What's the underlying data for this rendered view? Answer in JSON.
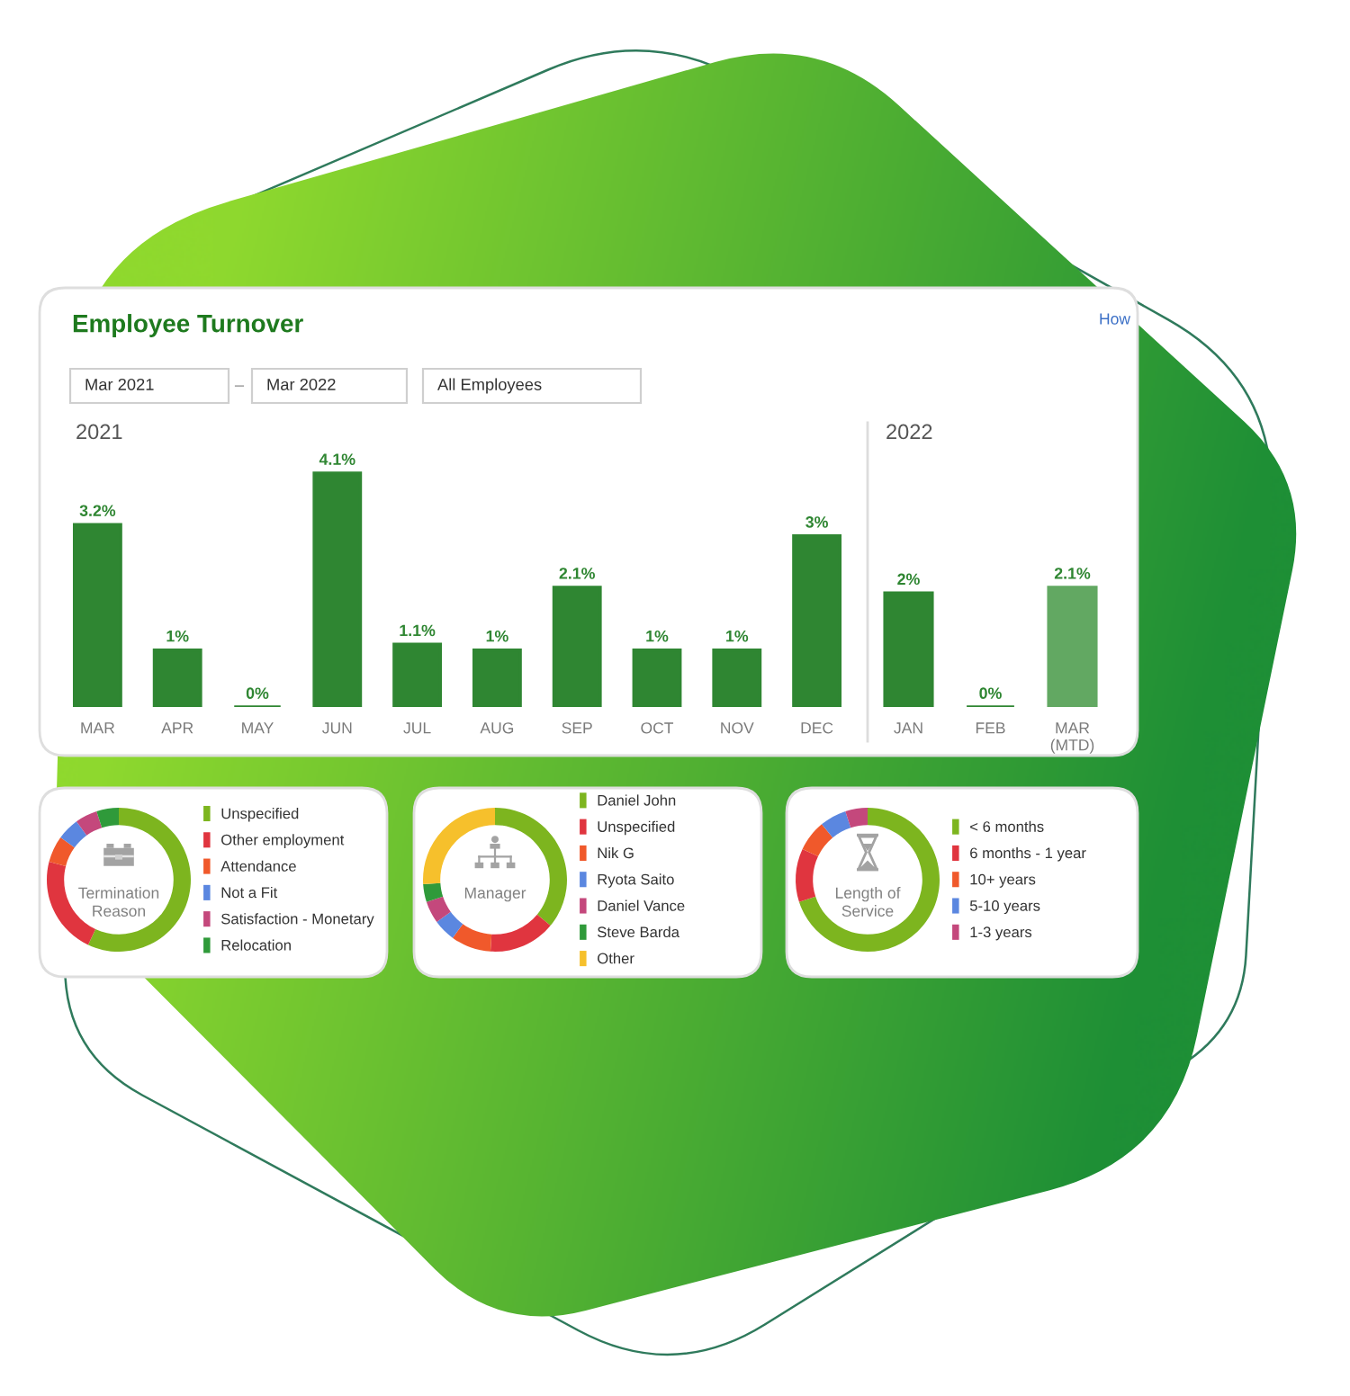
{
  "chart_data": [
    {
      "type": "bar",
      "title": "Employee Turnover",
      "subtitle": "2021",
      "categories": [
        "MAR",
        "APR",
        "MAY",
        "JUN",
        "JUL",
        "AUG",
        "SEP",
        "OCT",
        "NOV",
        "DEC"
      ],
      "values": [
        3.2,
        1,
        0,
        4.1,
        1.1,
        1,
        2.1,
        1,
        1,
        3
      ],
      "value_labels": [
        "3.2%",
        "1%",
        "0%",
        "4.1%",
        "1.1%",
        "1%",
        "2.1%",
        "1%",
        "1%",
        "3%"
      ],
      "color": "#2f8632",
      "tick_labels": "x",
      "annotations": [
        "Mar 2021",
        "–",
        "Mar 2022",
        "All Employees",
        "How"
      ]
    },
    {
      "type": "bar",
      "subtitle": "2022",
      "categories": [
        "JAN",
        "FEB",
        "MAR\n(MTD)"
      ],
      "values": [
        2,
        0,
        2.1
      ],
      "value_labels": [
        "2%",
        "0%",
        "2.1%"
      ],
      "colors": [
        "#2f8632",
        "#2f8632",
        "#62a862"
      ],
      "tick_labels": "x"
    },
    {
      "type": "donut",
      "title": "Termination\nReason",
      "categories": [
        "Unspecified",
        "Other employment",
        "Attendance",
        "Not a Fit",
        "Satisfaction - Monetary",
        "Relocation"
      ],
      "values": [
        57,
        22,
        6,
        5,
        5,
        5
      ],
      "colors": [
        "#7db51f",
        "#e0353f",
        "#f0592b",
        "#5b87e0",
        "#c4487c",
        "#2f9a3a"
      ],
      "legend": "right"
    },
    {
      "type": "donut",
      "title": "Manager",
      "categories": [
        "Daniel John",
        "Unspecified",
        "Nik G",
        "Ryota Saito",
        "Daniel Vance",
        "Steve Barda",
        "Other"
      ],
      "values": [
        36,
        15,
        9,
        5,
        5,
        4,
        26
      ],
      "colors": [
        "#7db51f",
        "#e0353f",
        "#f0592b",
        "#5b87e0",
        "#c4487c",
        "#2f9a3a",
        "#f6c02c"
      ],
      "legend": "right"
    },
    {
      "type": "donut",
      "title": "Length of\nService",
      "categories": [
        "< 6 months",
        "6 months - 1 year",
        "10+ years",
        "5-10 years",
        "1-3 years"
      ],
      "values": [
        70,
        12,
        7,
        6,
        5
      ],
      "colors": [
        "#7db51f",
        "#e0353f",
        "#f0592b",
        "#5b87e0",
        "#c4487c"
      ],
      "legend": "right"
    }
  ]
}
